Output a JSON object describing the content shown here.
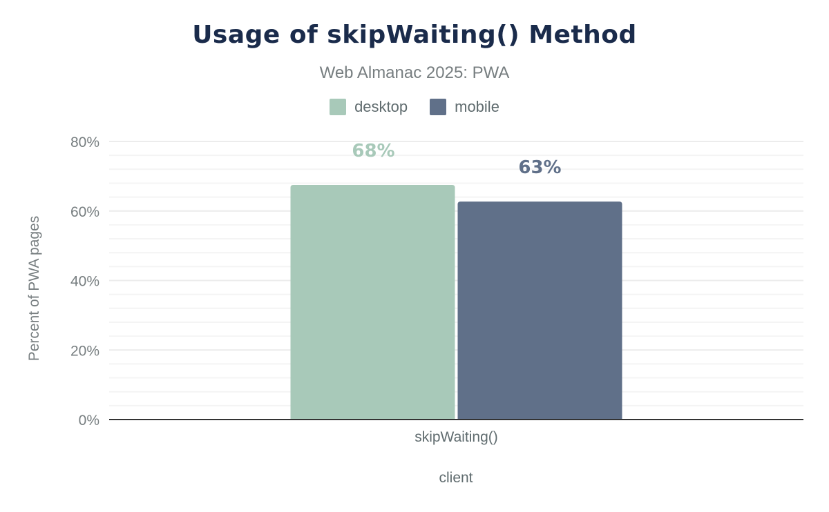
{
  "chart_data": {
    "type": "bar",
    "title": "Usage of skipWaiting() Method",
    "subtitle": "Web Almanac 2025: PWA",
    "xlabel": "client",
    "ylabel": "Percent of PWA pages",
    "categories": [
      "skipWaiting()"
    ],
    "series": [
      {
        "name": "desktop",
        "values": [
          67.5
        ],
        "label": "68%",
        "color": "#a8c9b9"
      },
      {
        "name": "mobile",
        "values": [
          62.7
        ],
        "label": "63%",
        "color": "#607089"
      }
    ],
    "ylim": [
      0,
      80
    ],
    "yticks": [
      0,
      20,
      40,
      60,
      80
    ],
    "ytick_labels": [
      "0%",
      "20%",
      "40%",
      "60%",
      "80%"
    ],
    "minor_grid_step": 4,
    "grid": true,
    "legend_position": "top"
  }
}
